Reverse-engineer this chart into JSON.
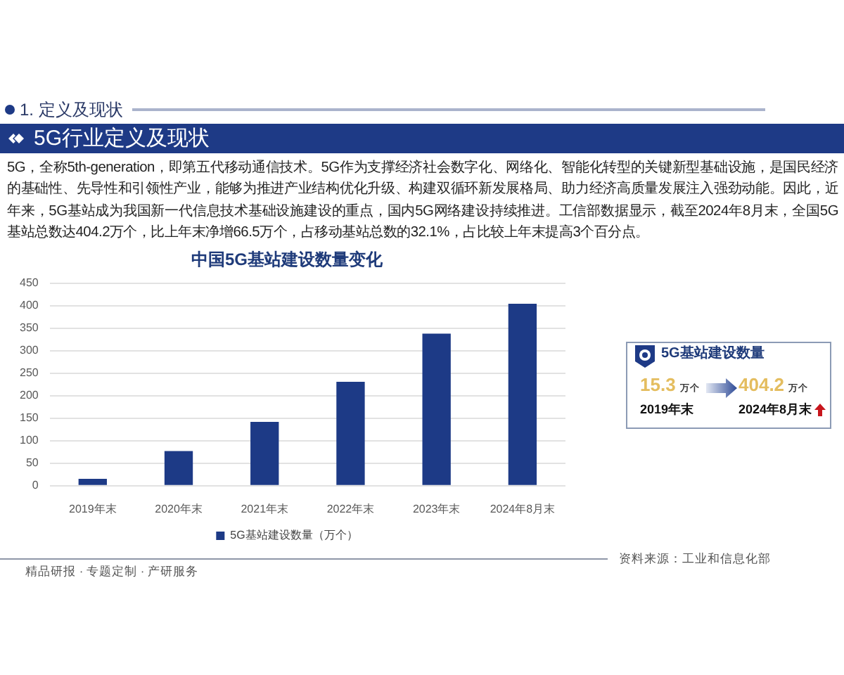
{
  "chart_data": [
    {
      "type": "bar",
      "title": "中国5G基站建设数量变化",
      "categories": [
        "2019年末",
        "2020年末",
        "2021年末",
        "2022年末",
        "2023年末",
        "2024年8月末"
      ],
      "series": [
        {
          "name": "5G基站建设数量（万个）",
          "color": "#1d3a86",
          "values": [
            15.3,
            77,
            142,
            231,
            338,
            404.2
          ]
        }
      ],
      "ylim": [
        0,
        450
      ],
      "yticks": [
        0,
        50,
        100,
        150,
        200,
        250,
        300,
        350,
        400,
        450
      ],
      "grid": "y",
      "legend": "bottom",
      "annotations": [
        "1. 定义及现状",
        "5G行业定义及现状",
        "5G，全称5th-generation，即第五代移动通信技术。5G作为支撑经济社会数字化、网络化、智能化转型的关键新型基础设施，是国民经济的基础性、先导性和引领性产业，能够为推进产业结构优化升级、构建双循环新发展格局、助力经济高质量发展注入强劲动能。因此，近年来，5G基站成为我国新一代信息技术基础设施建设的重点，国内5G网络建设持续推进。工信部数据显示，截至2024年8月末，全国5G基站总数达404.2万个，比上年末净增66.5万个，占移动基站总数的32.1%，占比较上年末提高3个百分点。",
        "精品研报 · 专题定制 · 产研服务",
        "资料来源：工业和信息化部"
      ]
    },
    {
      "type": "other",
      "title": "5G基站建设数量",
      "annotations": [
        "15.3",
        "万个",
        "2019年末",
        "404.2",
        "万个",
        "2024年8月末"
      ]
    }
  ]
}
